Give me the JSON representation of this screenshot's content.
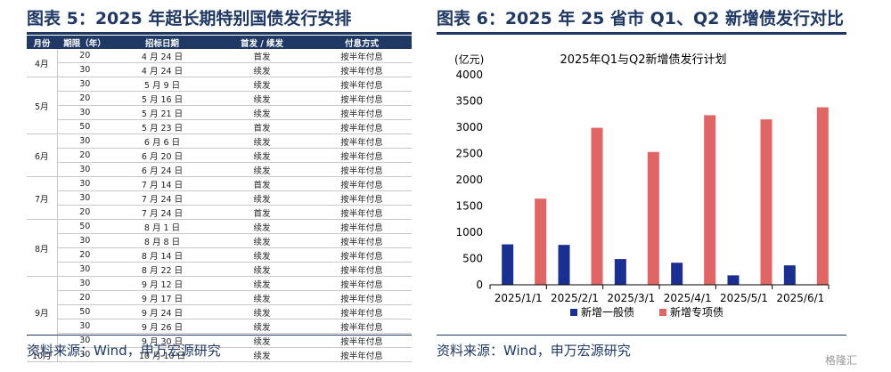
{
  "left": {
    "title": "图表 5：2025 年超长期特别国债发行安排",
    "headers": [
      "月份",
      "期限（年）",
      "招标日期",
      "首发 / 续发",
      "付息方式"
    ],
    "groups": [
      {
        "month": "4月",
        "rows": [
          [
            "20",
            "4 月 24 日",
            "首发",
            "按半年付息"
          ],
          [
            "30",
            "4 月 24 日",
            "续发",
            "按半年付息"
          ]
        ]
      },
      {
        "month": "5月",
        "rows": [
          [
            "30",
            "5 月 9 日",
            "续发",
            "按半年付息"
          ],
          [
            "20",
            "5 月 16 日",
            "续发",
            "按半年付息"
          ],
          [
            "30",
            "5 月 21 日",
            "续发",
            "按半年付息"
          ],
          [
            "50",
            "5 月 23 日",
            "首发",
            "按半年付息"
          ]
        ]
      },
      {
        "month": "6月",
        "rows": [
          [
            "30",
            "6 月 6 日",
            "续发",
            "按半年付息"
          ],
          [
            "20",
            "6 月 20 日",
            "续发",
            "按半年付息"
          ],
          [
            "30",
            "6 月 24 日",
            "续发",
            "按半年付息"
          ]
        ]
      },
      {
        "month": "7月",
        "rows": [
          [
            "30",
            "7 月 14 日",
            "首发",
            "按半年付息"
          ],
          [
            "30",
            "7 月 24 日",
            "续发",
            "按半年付息"
          ],
          [
            "20",
            "7 月 24 日",
            "首发",
            "按半年付息"
          ]
        ]
      },
      {
        "month": "8月",
        "rows": [
          [
            "50",
            "8 月 1 日",
            "续发",
            "按半年付息"
          ],
          [
            "30",
            "8 月 8 日",
            "续发",
            "按半年付息"
          ],
          [
            "20",
            "8 月 14 日",
            "续发",
            "按半年付息"
          ],
          [
            "30",
            "8 月 22 日",
            "续发",
            "按半年付息"
          ]
        ]
      },
      {
        "month": "9月",
        "rows": [
          [
            "30",
            "9 月 12 日",
            "续发",
            "按半年付息"
          ],
          [
            "20",
            "9 月 17 日",
            "续发",
            "按半年付息"
          ],
          [
            "50",
            "9 月 24 日",
            "续发",
            "按半年付息"
          ],
          [
            "30",
            "9 月 26 日",
            "续发",
            "按半年付息"
          ],
          [
            "30",
            "9 月 30 日",
            "续发",
            "按半年付息"
          ]
        ]
      },
      {
        "month": "10月",
        "rows": [
          [
            "30",
            "10 月 10 日",
            "续发",
            "按半年付息"
          ]
        ]
      }
    ],
    "source": "资料来源：Wind，申万宏源研究"
  },
  "right": {
    "title": "图表 6：2025 年 25 省市 Q1、Q2 新增债发行对比",
    "source": "资料来源：Wind，申万宏源研究"
  },
  "watermark": "格隆汇",
  "colors": {
    "navy": "#1f3864",
    "general": "#1a2f8f",
    "special": "#e06666"
  },
  "chart_data": {
    "type": "bar",
    "title": "2025年Q1与Q2新增债发行计划",
    "ylabel": "(亿元)",
    "ylim": [
      0,
      4000
    ],
    "yticks": [
      0,
      500,
      1000,
      1500,
      2000,
      2500,
      3000,
      3500,
      4000
    ],
    "grid": false,
    "legend": "bottom",
    "categories": [
      "2025/1/1",
      "2025/2/1",
      "2025/3/1",
      "2025/4/1",
      "2025/5/1",
      "2025/6/1"
    ],
    "series": [
      {
        "name": "新增一般债",
        "color": "#1a2f8f",
        "values": [
          770,
          760,
          490,
          420,
          180,
          370
        ]
      },
      {
        "name": "新增专项债",
        "color": "#e06666",
        "values": [
          1640,
          2990,
          2530,
          3230,
          3150,
          3380
        ]
      }
    ]
  }
}
